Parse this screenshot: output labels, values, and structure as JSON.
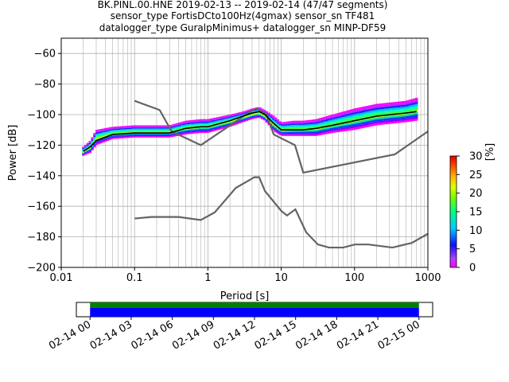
{
  "title": {
    "line1": "BK.PINL.00.HNE   2019-02-13 -- 2019-02-14  (47/47 segments)",
    "line2": "sensor_type FortisDCto100Hz(4gmax) sensor_sn TF481",
    "line3": "datalogger_type GuralpMinimus+ datalogger_sn MINP-DF59"
  },
  "colors": {
    "model_lines": "#646464",
    "median": "#000000",
    "coverage_data": "#0000ff",
    "coverage_gaps": "#008000"
  },
  "chart_data": [
    {
      "type": "heatmap",
      "name": "ppsd",
      "xlabel": "Period [s]",
      "ylabel": "Power [dB]",
      "xscale": "log",
      "xlim": [
        0.01,
        1000
      ],
      "ylim": [
        -200,
        -50
      ],
      "grid": true,
      "x_ticks": [
        0.01,
        0.1,
        1,
        10,
        100,
        1000
      ],
      "x_tick_labels": [
        "0.01",
        "0.1",
        "1",
        "10",
        "100",
        "1000"
      ],
      "y_ticks": [
        -200,
        -180,
        -160,
        -140,
        -120,
        -100,
        -80,
        -60
      ],
      "y_tick_labels": [
        "−200",
        "−180",
        "−160",
        "−140",
        "−120",
        "−100",
        "−80",
        "−60"
      ],
      "colorbar": {
        "label": "[%]",
        "range": [
          0,
          30
        ],
        "ticks": [
          0,
          5,
          10,
          15,
          20,
          25,
          30
        ],
        "tick_labels": [
          "0",
          "5",
          "10",
          "15",
          "20",
          "25",
          "30"
        ]
      },
      "median": {
        "period": [
          0.02,
          0.025,
          0.03,
          0.05,
          0.1,
          0.2,
          0.3,
          0.5,
          0.8,
          1,
          2,
          3,
          4,
          5,
          6,
          8,
          10,
          15,
          20,
          30,
          50,
          100,
          200,
          500,
          700
        ],
        "db": [
          -124,
          -121,
          -117,
          -113,
          -112,
          -112,
          -112,
          -109,
          -108,
          -108,
          -104,
          -101,
          -99,
          -98,
          -100,
          -106,
          -110,
          -110,
          -110,
          -109,
          -107,
          -104,
          -101,
          -99,
          -98
        ]
      },
      "spread": {
        "period": [
          0.02,
          0.025,
          0.03,
          0.05,
          0.1,
          0.2,
          0.3,
          0.5,
          0.8,
          1,
          2,
          3,
          4,
          5,
          6,
          8,
          10,
          15,
          20,
          30,
          50,
          100,
          200,
          500,
          700
        ],
        "db_low": [
          -127,
          -125,
          -120,
          -116,
          -115,
          -115,
          -115,
          -113,
          -112,
          -112,
          -108,
          -105,
          -103,
          -102,
          -104,
          -111,
          -114,
          -114,
          -114,
          -114,
          -112,
          -110,
          -107,
          -105,
          -104
        ],
        "db_high": [
          -121,
          -117,
          -110,
          -108,
          -107,
          -107,
          -107,
          -104,
          -103,
          -103,
          -100,
          -98,
          -96,
          -95,
          -97,
          -101,
          -105,
          -104,
          -104,
          -103,
          -100,
          -96,
          -93,
          -91,
          -89
        ]
      },
      "noise_models": [
        {
          "period": [
            0.1,
            0.17,
            0.4,
            0.8,
            1.24,
            2.4,
            4.3,
            5,
            6,
            10,
            12,
            15.6,
            21.9,
            31.6,
            45,
            70,
            101,
            154,
            328,
            600,
            1000
          ],
          "db": [
            -168,
            -167,
            -167,
            -169,
            -164,
            -148,
            -141,
            -141,
            -150,
            -163,
            -166,
            -162,
            -177,
            -185,
            -187,
            -187,
            -185,
            -185,
            -187,
            -184,
            -178
          ]
        },
        {
          "period": [
            0.1,
            0.22,
            0.32,
            0.8,
            3.8,
            4.6,
            6.3,
            7.9,
            15.4,
            20,
            354.8,
            1000
          ],
          "db": [
            -91,
            -97,
            -111,
            -120,
            -98,
            -96,
            -100,
            -113,
            -120,
            -138,
            -126,
            -111
          ]
        }
      ]
    },
    {
      "type": "bar",
      "name": "data-coverage",
      "x_ticks": [
        "02-14 00",
        "02-14 03",
        "02-14 06",
        "02-14 09",
        "02-14 12",
        "02-14 15",
        "02-14 18",
        "02-14 21",
        "02-15 00"
      ],
      "xlim_hours": [
        -1,
        25
      ],
      "coverage_hours": [
        0,
        24
      ]
    }
  ]
}
